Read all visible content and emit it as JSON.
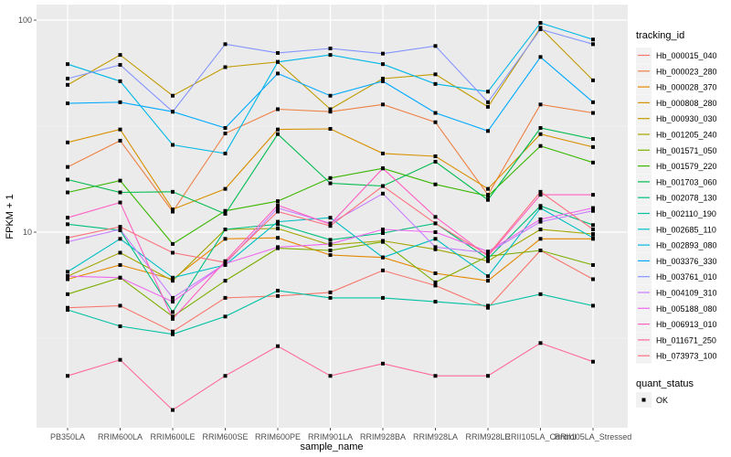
{
  "chart_data": {
    "type": "line",
    "title": "",
    "xlabel": "sample_name",
    "ylabel": "FPKM + 1",
    "yscale": "log10",
    "ylim": [
      1.3,
      125
    ],
    "yticks": [
      {
        "value": 10,
        "label": "10"
      },
      {
        "value": 100,
        "label": "100"
      }
    ],
    "grid": true,
    "categories": [
      "PB350LA",
      "RRIM600LA",
      "RRIM600LE",
      "RRIM600SE",
      "RRIM600PE",
      "RRIM901LA",
      "RRIM928BA",
      "RRIM928LA",
      "RRIM928LE",
      "RRII105LA_Control",
      "RRII105LA_Stressed"
    ],
    "legend": {
      "position": "right",
      "title": "tracking_id",
      "shape_title": "quant_status",
      "shape_entries": [
        {
          "label": "OK",
          "shape": "square"
        }
      ]
    },
    "series": [
      {
        "name": "Hb_000015_040",
        "color": "#F8766D",
        "values": [
          4.4,
          4.5,
          3.4,
          4.9,
          5.0,
          5.2,
          6.6,
          5.6,
          4.4,
          8.2,
          6.0
        ]
      },
      {
        "name": "Hb_000023_280",
        "color": "#EE8044",
        "values": [
          20.3,
          27.0,
          12.5,
          29.2,
          38.0,
          37.0,
          40.0,
          33.0,
          15.0,
          40.0,
          36.5
        ]
      },
      {
        "name": "Hb_000028_370",
        "color": "#E58700",
        "values": [
          6.0,
          7.0,
          6.0,
          9.3,
          9.4,
          7.8,
          7.6,
          6.4,
          5.9,
          9.3,
          9.3
        ]
      },
      {
        "name": "Hb_000808_280",
        "color": "#D89000",
        "values": [
          26.5,
          30.5,
          12.8,
          16.0,
          30.5,
          30.7,
          23.5,
          22.8,
          16.0,
          29.0,
          25.2
        ]
      },
      {
        "name": "Hb_000930_030",
        "color": "#C09B00",
        "values": [
          49.5,
          68.5,
          44.0,
          60.0,
          63.5,
          38.0,
          53.0,
          55.5,
          39.0,
          92.0,
          52.0
        ]
      },
      {
        "name": "Hb_001205_240",
        "color": "#A3A500",
        "values": [
          6.2,
          8.0,
          5.9,
          10.3,
          10.4,
          8.7,
          9.1,
          8.3,
          7.3,
          10.3,
          9.8
        ]
      },
      {
        "name": "Hb_001571_050",
        "color": "#7CAE00",
        "values": [
          5.1,
          6.1,
          4.0,
          5.9,
          8.4,
          8.2,
          9.0,
          5.8,
          7.7,
          8.2,
          7.0
        ]
      },
      {
        "name": "Hb_001579_220",
        "color": "#39B600",
        "values": [
          15.4,
          17.5,
          8.8,
          12.6,
          14.0,
          18.0,
          20.0,
          16.8,
          14.8,
          25.5,
          21.3
        ]
      },
      {
        "name": "Hb_001703_060",
        "color": "#00BB4E",
        "values": [
          17.7,
          15.4,
          15.5,
          12.2,
          29.0,
          17.0,
          16.5,
          21.5,
          14.2,
          31.0,
          27.5
        ]
      },
      {
        "name": "Hb_002078_130",
        "color": "#00BF7D",
        "values": [
          10.9,
          10.2,
          4.2,
          10.3,
          10.9,
          9.2,
          9.9,
          11.0,
          7.5,
          13.3,
          10.8
        ]
      },
      {
        "name": "Hb_002110_190",
        "color": "#00C1A3",
        "values": [
          4.3,
          3.6,
          3.3,
          4.0,
          5.3,
          4.9,
          4.9,
          4.7,
          4.5,
          5.1,
          4.5
        ]
      },
      {
        "name": "Hb_002685_110",
        "color": "#00BFC4",
        "values": [
          6.5,
          9.3,
          6.1,
          7.0,
          11.2,
          11.7,
          7.6,
          9.3,
          6.2,
          13.0,
          9.4
        ]
      },
      {
        "name": "Hb_002893_080",
        "color": "#00B8E7",
        "values": [
          62.0,
          51.5,
          25.8,
          23.5,
          63.5,
          68.5,
          62.0,
          50.0,
          46.0,
          97.0,
          81.0
        ]
      },
      {
        "name": "Hb_003376_330",
        "color": "#00A9FF",
        "values": [
          40.5,
          41.0,
          37.0,
          31.0,
          56.0,
          44.0,
          51.5,
          36.5,
          30.0,
          67.0,
          41.0
        ]
      },
      {
        "name": "Hb_003761_010",
        "color": "#8494FF",
        "values": [
          53.0,
          61.5,
          37.0,
          77.0,
          70.0,
          73.5,
          69.5,
          75.5,
          41.0,
          90.5,
          77.0
        ]
      },
      {
        "name": "Hb_004109_310",
        "color": "#C77CFF",
        "values": [
          9.0,
          10.3,
          4.9,
          7.1,
          13.0,
          11.0,
          15.2,
          8.5,
          8.0,
          11.2,
          12.6
        ]
      },
      {
        "name": "Hb_005188_080",
        "color": "#ED68ED",
        "values": [
          6.2,
          6.1,
          4.7,
          7.1,
          8.5,
          8.8,
          10.3,
          10.0,
          8.1,
          11.5,
          13.0
        ]
      },
      {
        "name": "Hb_006913_010",
        "color": "#FF61C3",
        "values": [
          11.7,
          13.8,
          3.9,
          7.3,
          13.4,
          10.9,
          20.0,
          11.8,
          7.7,
          15.0,
          15.0
        ]
      },
      {
        "name": "Hb_011671_250",
        "color": "#FF6A98",
        "values": [
          2.1,
          2.5,
          1.45,
          2.1,
          2.9,
          2.1,
          2.4,
          2.1,
          2.1,
          3.0,
          2.45
        ]
      },
      {
        "name": "Hb_073973_100",
        "color": "#FC717F",
        "values": [
          9.4,
          10.6,
          8.0,
          7.2,
          12.5,
          10.7,
          16.5,
          11.0,
          7.8,
          15.5,
          10.3
        ]
      }
    ]
  }
}
